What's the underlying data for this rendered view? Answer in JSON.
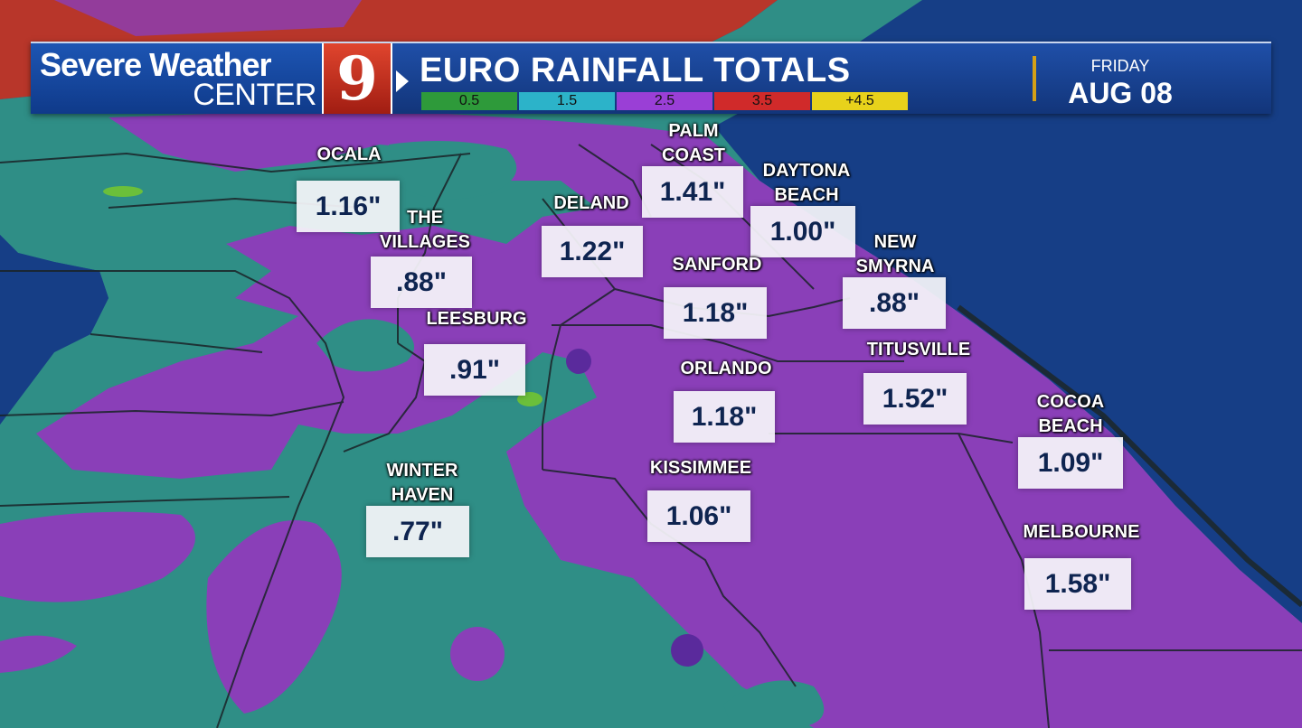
{
  "header": {
    "brand_line1": "Severe Weather",
    "brand_line2": "CENTER",
    "logo": "9",
    "title": "EURO RAINFALL TOTALS",
    "day": "FRIDAY",
    "date": "AUG 08",
    "arrow_icon": "play-arrow-icon"
  },
  "legend": [
    {
      "label": "0.5",
      "color": "#2e9a3a"
    },
    {
      "label": "1.5",
      "color": "#2cb3c9"
    },
    {
      "label": "2.5",
      "color": "#9a3fd6"
    },
    {
      "label": "3.5",
      "color": "#d02a2a"
    },
    {
      "label": "+4.5",
      "color": "#e8d21b"
    }
  ],
  "colors": {
    "ocean": "#163e86",
    "light_rain": "#2f8e86",
    "moderate_rain": "#8a3fb8",
    "heavy_rain_north": "#c23a2a",
    "county_lines": "#1a2328"
  },
  "cities": [
    {
      "name": "OCALA",
      "value": "1.16\""
    },
    {
      "name": "THE\nVILLAGES",
      "value": ".88\""
    },
    {
      "name": "LEESBURG",
      "value": ".91\""
    },
    {
      "name": "DELAND",
      "value": "1.22\""
    },
    {
      "name": "PALM\nCOAST",
      "value": "1.41\""
    },
    {
      "name": "DAYTONA\nBEACH",
      "value": "1.00\""
    },
    {
      "name": "SANFORD",
      "value": "1.18\""
    },
    {
      "name": "NEW\nSMYRNA",
      "value": ".88\""
    },
    {
      "name": "ORLANDO",
      "value": "1.18\""
    },
    {
      "name": "TITUSVILLE",
      "value": "1.52\""
    },
    {
      "name": "KISSIMMEE",
      "value": "1.06\""
    },
    {
      "name": "WINTER\nHAVEN",
      "value": ".77\""
    },
    {
      "name": "COCOA\nBEACH",
      "value": "1.09\""
    },
    {
      "name": "MELBOURNE",
      "value": "1.58\""
    }
  ]
}
